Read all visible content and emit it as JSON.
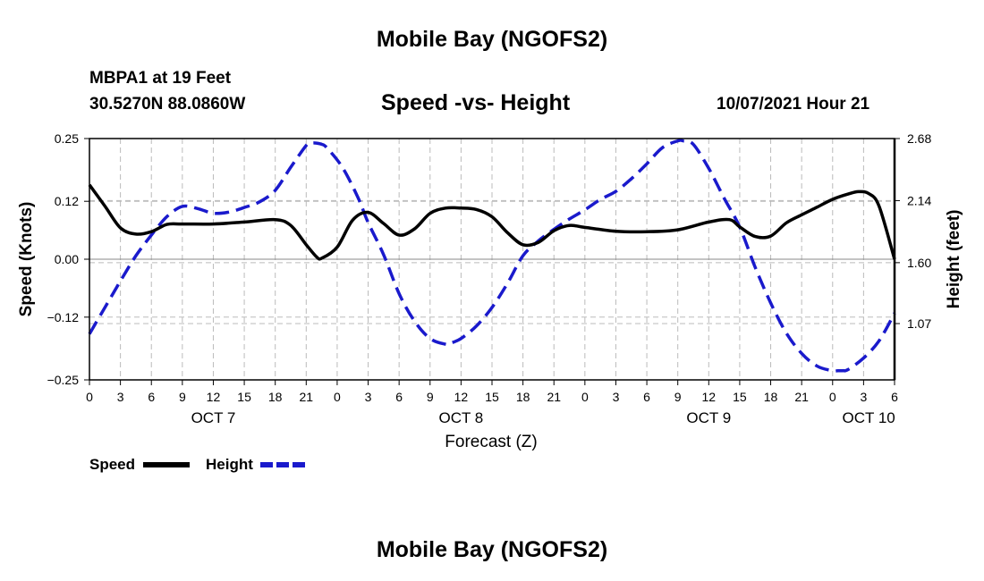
{
  "header": {
    "title": "Mobile Bay (NGOFS2)",
    "station": "MBPA1 at 19 Feet",
    "coords": "30.5270N  88.0860W",
    "subtitle": "Speed -vs- Height",
    "timestamp": "10/07/2021 Hour 21"
  },
  "footer": {
    "title": "Mobile Bay (NGOFS2)"
  },
  "legend": {
    "speed_label": "Speed",
    "height_label": "Height"
  },
  "colors": {
    "speed": "#000000",
    "height": "#1a1acc",
    "grid": "#bbbbbb"
  },
  "chart_data": {
    "type": "line",
    "title": "Speed -vs- Height",
    "xlabel": "Forecast (Z)",
    "ylabel_left": "Speed (Knots)",
    "ylabel_right": "Height (feet)",
    "grid": true,
    "legend_position": "bottom-left",
    "x_unit": "hours since 10/07 00Z",
    "xlim": [
      0,
      78
    ],
    "x_ticks": [
      0,
      3,
      6,
      9,
      12,
      15,
      18,
      21,
      24,
      27,
      30,
      33,
      36,
      39,
      42,
      45,
      48,
      51,
      54,
      57,
      60,
      63,
      66,
      69,
      72,
      75,
      78
    ],
    "x_tick_labels": [
      "0",
      "3",
      "6",
      "9",
      "12",
      "15",
      "18",
      "21",
      "0",
      "3",
      "6",
      "9",
      "12",
      "15",
      "18",
      "21",
      "0",
      "3",
      "6",
      "9",
      "12",
      "15",
      "18",
      "21",
      "0",
      "3",
      "6"
    ],
    "date_labels": [
      {
        "x": 12,
        "label": "OCT 7"
      },
      {
        "x": 36,
        "label": "OCT 8"
      },
      {
        "x": 60,
        "label": "OCT 9"
      },
      {
        "x": 75.5,
        "label": "OCT 10"
      }
    ],
    "left_axis": {
      "ylim": [
        -0.25,
        0.25
      ],
      "ticks": [
        -0.25,
        -0.12,
        0.0,
        0.12,
        0.25
      ],
      "tick_labels": [
        "−0.25",
        "−0.12",
        "0.00",
        "0.12",
        "0.25"
      ]
    },
    "right_axis": {
      "ylim": [
        0.58,
        2.68
      ],
      "ticks": [
        1.07,
        1.6,
        2.14,
        2.68
      ],
      "tick_labels": [
        "1.07",
        "1.60",
        "2.14",
        "2.68"
      ]
    },
    "series": [
      {
        "name": "Speed",
        "axis": "left",
        "style": "solid",
        "x": [
          0,
          1.5,
          3,
          4.5,
          6,
          7.5,
          9,
          12,
          15,
          18,
          19.5,
          21,
          22,
          22.5,
          24,
          25.5,
          27,
          28.5,
          30,
          31.5,
          33,
          34.5,
          36,
          37.5,
          39,
          40.5,
          42,
          43.5,
          45,
          46.5,
          48,
          51,
          54,
          57,
          60,
          62,
          63,
          64.5,
          66,
          67.5,
          69,
          70.5,
          72,
          73.5,
          74.5,
          75.5,
          76.5,
          78
        ],
        "y": [
          0.154,
          0.11,
          0.065,
          0.052,
          0.057,
          0.072,
          0.073,
          0.073,
          0.077,
          0.082,
          0.07,
          0.03,
          0.005,
          0.002,
          0.025,
          0.081,
          0.097,
          0.074,
          0.05,
          0.063,
          0.095,
          0.106,
          0.106,
          0.103,
          0.088,
          0.055,
          0.03,
          0.035,
          0.059,
          0.07,
          0.066,
          0.058,
          0.057,
          0.061,
          0.077,
          0.082,
          0.067,
          0.047,
          0.048,
          0.075,
          0.092,
          0.108,
          0.124,
          0.135,
          0.14,
          0.136,
          0.11,
          0.0
        ]
      },
      {
        "name": "Height",
        "axis": "right",
        "style": "dashed",
        "x": [
          0,
          1.5,
          3,
          4.5,
          6,
          7.5,
          9,
          10.5,
          12,
          13.5,
          15,
          16.5,
          18,
          19.5,
          21,
          21.5,
          22,
          22.5,
          23,
          24.5,
          26,
          27,
          28.5,
          30,
          31.5,
          33,
          34.5,
          35,
          36,
          37.5,
          39,
          40.5,
          42,
          43.5,
          45,
          46.5,
          48,
          49.5,
          51,
          52.5,
          54,
          55.5,
          57,
          57.5,
          58.5,
          60,
          61.5,
          63,
          64.5,
          66,
          67.5,
          69,
          70.5,
          72,
          72.5,
          73,
          73.5,
          75,
          76.5,
          78
        ],
        "y": [
          0.98,
          1.21,
          1.44,
          1.66,
          1.84,
          2.0,
          2.09,
          2.07,
          2.03,
          2.04,
          2.08,
          2.13,
          2.23,
          2.43,
          2.62,
          2.64,
          2.64,
          2.63,
          2.6,
          2.43,
          2.17,
          1.95,
          1.67,
          1.33,
          1.09,
          0.94,
          0.89,
          0.9,
          0.94,
          1.05,
          1.21,
          1.42,
          1.66,
          1.79,
          1.89,
          1.98,
          2.06,
          2.15,
          2.22,
          2.33,
          2.46,
          2.6,
          2.66,
          2.66,
          2.63,
          2.42,
          2.16,
          1.91,
          1.56,
          1.25,
          0.99,
          0.81,
          0.7,
          0.66,
          0.66,
          0.66,
          0.67,
          0.77,
          0.92,
          1.16
        ]
      }
    ]
  }
}
